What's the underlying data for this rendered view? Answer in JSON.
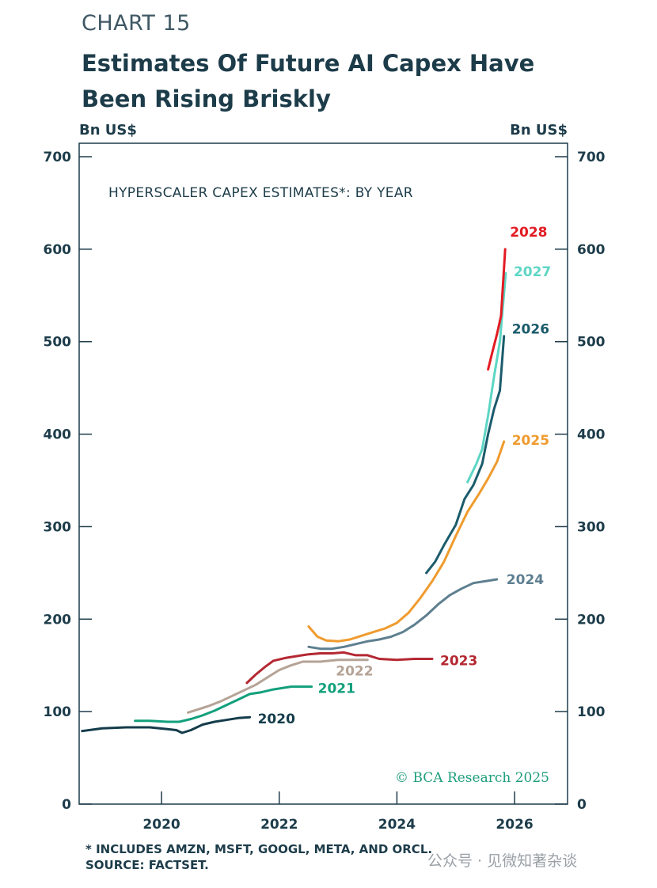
{
  "header": {
    "chart_label": "CHART 15",
    "title": "Estimates Of Future AI Capex Have Been Rising Briskly"
  },
  "footer": {
    "note": "* INCLUDES AMZN, MSFT, GOOGL, META, AND ORCL.",
    "source": "SOURCE: FACTSET."
  },
  "watermark": "公众号 · 见微知著杂谈",
  "chart_data": {
    "type": "line",
    "title": "Estimates Of Future AI Capex Have Been Rising Briskly",
    "inner_title": "HYPERSCALER CAPEX ESTIMATES*: BY YEAR",
    "ylabel_left": "Bn US$",
    "ylabel_right": "Bn US$",
    "ylim": [
      0,
      700
    ],
    "yticks": [
      "0",
      "100",
      "200",
      "300",
      "400",
      "500",
      "600",
      "700"
    ],
    "xlim": [
      2018.6,
      2026.9
    ],
    "xticks": [
      "2020",
      "2022",
      "2024",
      "2026"
    ],
    "credit": "© BCA Research 2025",
    "series": [
      {
        "name": "2020",
        "color": "#143c4a",
        "x": [
          2018.65,
          2019.0,
          2019.4,
          2019.8,
          2020.1,
          2020.25,
          2020.35,
          2020.5,
          2020.7,
          2020.9,
          2021.1,
          2021.3,
          2021.5
        ],
        "y": [
          79,
          82,
          83,
          83,
          81,
          80,
          77,
          80,
          86,
          89,
          91,
          93,
          94
        ]
      },
      {
        "name": "2021",
        "color": "#12a07c",
        "x": [
          2019.55,
          2019.8,
          2020.1,
          2020.3,
          2020.5,
          2020.7,
          2020.9,
          2021.1,
          2021.3,
          2021.5,
          2021.7,
          2021.9,
          2022.2,
          2022.55
        ],
        "y": [
          90,
          90,
          89,
          89,
          92,
          96,
          101,
          107,
          113,
          119,
          121,
          124,
          127,
          127
        ]
      },
      {
        "name": "2022",
        "color": "#b5a396",
        "x": [
          2020.45,
          2020.6,
          2020.8,
          2021.0,
          2021.2,
          2021.4,
          2021.6,
          2021.8,
          2022.0,
          2022.2,
          2022.4,
          2022.7,
          2023.0,
          2023.5
        ],
        "y": [
          99,
          102,
          106,
          111,
          117,
          123,
          129,
          137,
          145,
          150,
          154,
          154,
          156,
          156
        ]
      },
      {
        "name": "2023",
        "color": "#b42832",
        "x": [
          2021.45,
          2021.6,
          2021.75,
          2021.9,
          2022.1,
          2022.3,
          2022.5,
          2022.7,
          2022.9,
          2023.1,
          2023.3,
          2023.5,
          2023.7,
          2024.0,
          2024.3,
          2024.6
        ],
        "y": [
          131,
          140,
          148,
          155,
          158,
          160,
          162,
          163,
          163,
          164,
          161,
          161,
          157,
          156,
          157,
          157
        ]
      },
      {
        "name": "2024",
        "color": "#5e7f90",
        "x": [
          2022.5,
          2022.7,
          2022.9,
          2023.1,
          2023.3,
          2023.5,
          2023.7,
          2023.9,
          2024.1,
          2024.3,
          2024.5,
          2024.7,
          2024.9,
          2025.1,
          2025.3,
          2025.5,
          2025.7
        ],
        "y": [
          170,
          168,
          168,
          170,
          173,
          176,
          178,
          181,
          186,
          194,
          204,
          216,
          226,
          233,
          239,
          241,
          243
        ]
      },
      {
        "name": "2025",
        "color": "#ef9b2e",
        "x": [
          2022.5,
          2022.65,
          2022.8,
          2023.0,
          2023.2,
          2023.4,
          2023.6,
          2023.8,
          2024.0,
          2024.2,
          2024.4,
          2024.6,
          2024.8,
          2025.0,
          2025.2,
          2025.4,
          2025.55,
          2025.7,
          2025.82
        ],
        "y": [
          192,
          181,
          177,
          176,
          178,
          182,
          186,
          190,
          196,
          207,
          223,
          241,
          262,
          290,
          316,
          336,
          352,
          370,
          392
        ]
      },
      {
        "name": "2026",
        "color": "#1b5c6c",
        "x": [
          2024.5,
          2024.65,
          2024.8,
          2025.0,
          2025.15,
          2025.3,
          2025.45,
          2025.55,
          2025.65,
          2025.75,
          2025.82
        ],
        "y": [
          250,
          262,
          280,
          302,
          330,
          345,
          368,
          400,
          427,
          447,
          506
        ]
      },
      {
        "name": "2027",
        "color": "#5dd6c4",
        "x": [
          2025.2,
          2025.35,
          2025.45,
          2025.55,
          2025.65,
          2025.75,
          2025.85
        ],
        "y": [
          348,
          368,
          384,
          420,
          462,
          500,
          574
        ]
      },
      {
        "name": "2028",
        "color": "#e21b23",
        "x": [
          2025.55,
          2025.62,
          2025.7,
          2025.77,
          2025.84
        ],
        "y": [
          470,
          488,
          508,
          528,
          600
        ]
      }
    ]
  }
}
